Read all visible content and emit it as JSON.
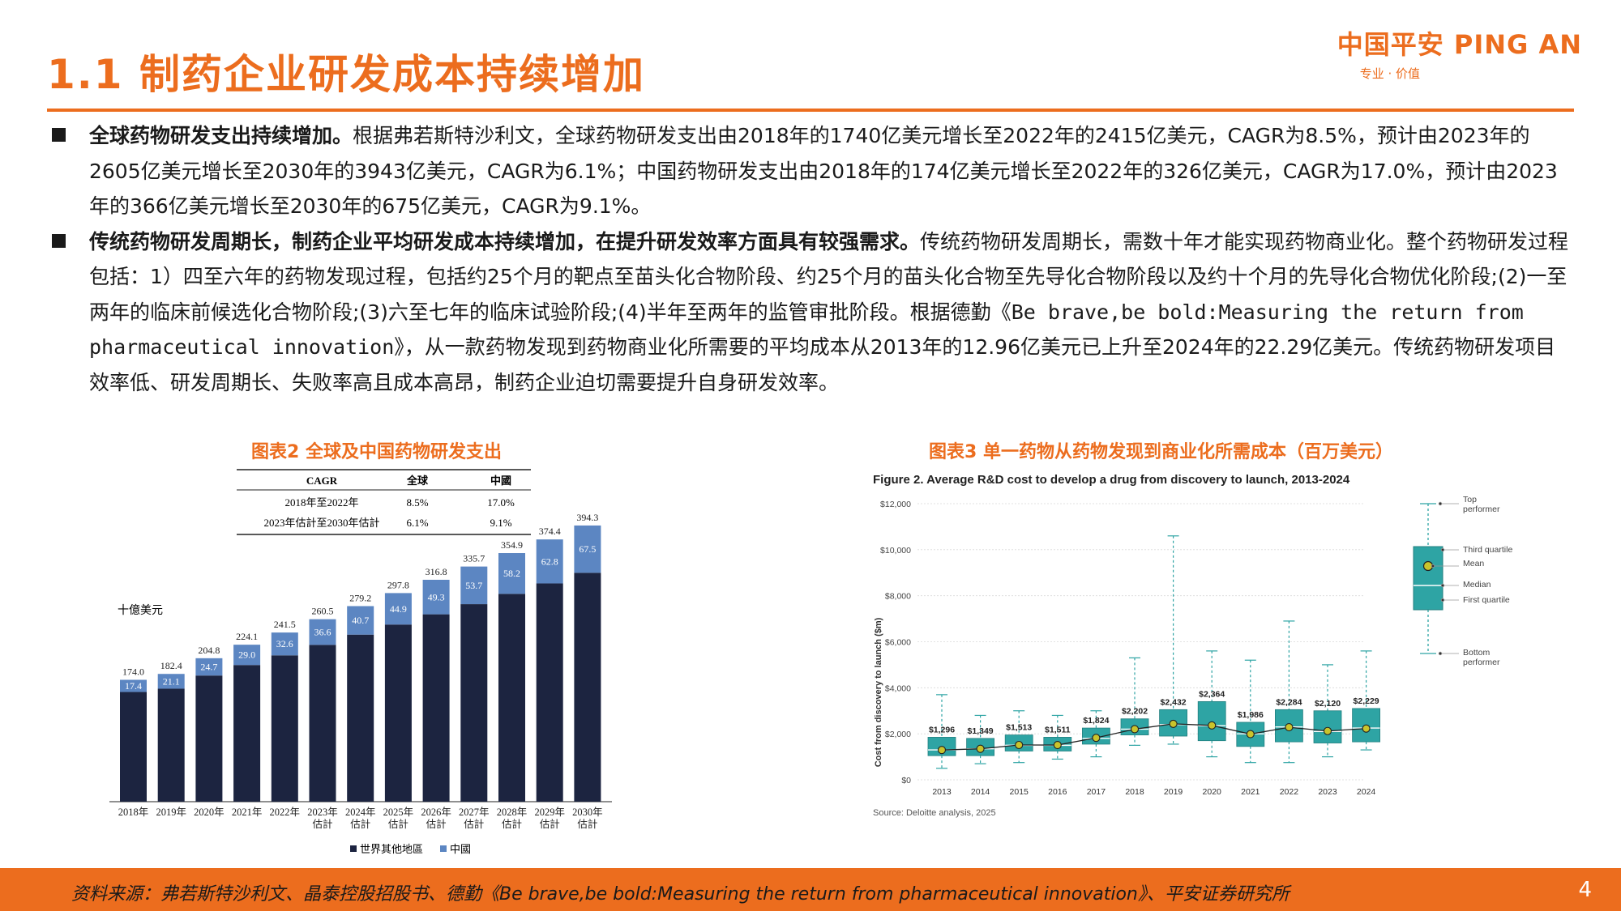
{
  "header": {
    "title": "1.1 制药企业研发成本持续增加",
    "logo_main": "中国平安 PING AN",
    "logo_sub": "专业 · 价值"
  },
  "bullets": [
    {
      "bold": "全球药物研发支出持续增加。",
      "text": "根据弗若斯特沙利文，全球药物研发支出由2018年的1740亿美元增长至2022年的2415亿美元，CAGR为8.5%，预计由2023年的2605亿美元增长至2030年的3943亿美元，CAGR为6.1%；中国药物研发支出由2018年的174亿美元增长至2022年的326亿美元，CAGR为17.0%，预计由2023年的366亿美元增长至2030年的675亿美元，CAGR为9.1%。"
    },
    {
      "bold": "传统药物研发周期长，制药企业平均研发成本持续增加，在提升研发效率方面具有较强需求。",
      "text1": "传统药物研发周期长，需数十年才能实现药物商业化。整个药物研发过程包括：1）四至六年的药物发现过程，包括约25个月的靶点至苗头化合物阶段、约25个月的苗头化合物至先导化合物阶段以及约十个月的先导化合物优化阶段;(2)一至两年的临床前候选化合物阶段;(3)六至七年的临床试验阶段;(4)半年至两年的监管审批阶段。根据德勤",
      "mono": "《Be brave,be bold:Measuring the return from pharmaceutical innovation》",
      "text2": "，从一款药物发现到药物商业化所需要的平均成本从2013年的12.96亿美元已上升至2024年的22.29亿美元。传统药物研发项目效率低、研发周期长、失败率高且成本高昂，制药企业迫切需要提升自身研发效率。"
    }
  ],
  "fig2": {
    "caption": "图表2 全球及中国药物研发支出",
    "cagr_table": {
      "headers": [
        "CAGR",
        "全球",
        "中國"
      ],
      "rows": [
        [
          "2018年至2022年",
          "8.5%",
          "17.0%"
        ],
        [
          "2023年估計至2030年估計",
          "6.1%",
          "9.1%"
        ]
      ]
    },
    "unit": "十億美元",
    "legend": [
      "世界其他地區",
      "中國"
    ]
  },
  "fig3": {
    "caption": "图表3 单一药物从药物发现到商业化所需成本（百万美元）",
    "title": "Figure 2. Average R&D cost to develop a drug from discovery to launch, 2013-2024",
    "ylabel": "Cost from discovery to launch ($m)",
    "source": "Source: Deloitte analysis, 2025",
    "key": [
      "Top performer",
      "Third quartile",
      "Mean",
      "Median",
      "First quartile",
      "Bottom performer"
    ]
  },
  "chart_data": [
    {
      "type": "bar",
      "categories": [
        "2018年",
        "2019年",
        "2020年",
        "2021年",
        "2022年",
        "2023年估計",
        "2024年估計",
        "2025年估計",
        "2026年估計",
        "2027年估計",
        "2028年估計",
        "2029年估計",
        "2030年估計"
      ],
      "totals": [
        "174.0",
        "182.4",
        "204.8",
        "224.1",
        "241.5",
        "260.5",
        "279.2",
        "297.8",
        "316.8",
        "335.7",
        "354.9",
        "374.4",
        "394.3"
      ],
      "series": [
        {
          "name": "世界其他地區",
          "values": [
            156.6,
            161.3,
            180.1,
            195.1,
            208.9,
            223.9,
            238.5,
            252.9,
            267.5,
            282.0,
            296.7,
            311.6,
            326.8
          ]
        },
        {
          "name": "中國",
          "values": [
            17.4,
            21.1,
            24.7,
            29.0,
            32.6,
            36.6,
            40.7,
            44.9,
            49.3,
            53.7,
            58.2,
            62.8,
            67.5
          ]
        }
      ],
      "ylabel": "十億美元",
      "legend": "bottom",
      "colors": [
        "#1c2440",
        "#5c86c2"
      ]
    },
    {
      "type": "box",
      "title": "Figure 2. Average R&D cost to develop a drug from discovery to launch, 2013-2024",
      "x": [
        "2013",
        "2014",
        "2015",
        "2016",
        "2017",
        "2018",
        "2019",
        "2020",
        "2021",
        "2022",
        "2023",
        "2024"
      ],
      "mean_labels": [
        "$1,296",
        "$1,349",
        "$1,513",
        "$1,511",
        "$1,824",
        "$2,202",
        "$2,432",
        "$2,364",
        "$1,986",
        "$2,284",
        "$2,120",
        "$2,229"
      ],
      "mean": [
        1296,
        1349,
        1513,
        1511,
        1824,
        2202,
        2432,
        2364,
        1986,
        2284,
        2120,
        2229
      ],
      "q1": [
        1050,
        1050,
        1250,
        1250,
        1550,
        1950,
        1900,
        1700,
        1450,
        1650,
        1600,
        1650
      ],
      "q3": [
        1850,
        1800,
        1950,
        1850,
        2250,
        2650,
        3050,
        3400,
        2500,
        3050,
        3000,
        3100
      ],
      "median": [
        1300,
        1350,
        1500,
        1500,
        1800,
        2200,
        2400,
        2350,
        2000,
        2300,
        2100,
        2250
      ],
      "min": [
        500,
        700,
        750,
        900,
        1000,
        1500,
        1550,
        1000,
        750,
        750,
        1000,
        1300
      ],
      "max": [
        3700,
        2800,
        3000,
        2800,
        3000,
        5300,
        10600,
        5600,
        5200,
        6900,
        5000,
        5600
      ],
      "yticks": [
        "$0",
        "$2,000",
        "$4,000",
        "$6,000",
        "$8,000",
        "$10,000",
        "$12,000"
      ],
      "ylim": [
        0,
        12000
      ],
      "ylabel": "Cost from discovery to launch ($m)",
      "colors": [
        "#2ea4a4",
        "#c9c42c"
      ]
    }
  ],
  "footer": {
    "source": "资料来源：弗若斯特沙利文、晶泰控股招股书、德勤《Be brave,be bold:Measuring the return from pharmaceutical innovation》、平安证券研究所",
    "page": "4"
  }
}
